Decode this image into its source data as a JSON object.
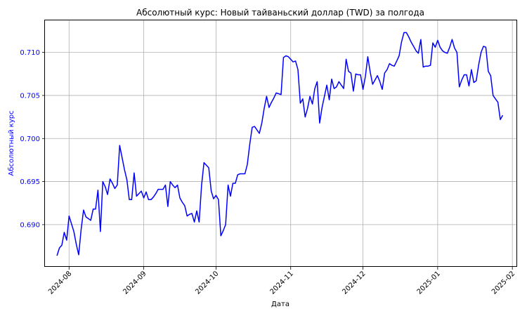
{
  "chart_data": {
    "type": "line",
    "title": "Абсолютный курс: Новый тайваньский доллар (TWD) за полгода",
    "xlabel": "Дата",
    "ylabel": "Абсолютный курс",
    "xlim": [
      "2024-07-22",
      "2025-02-03"
    ],
    "ylim": [
      0.6851,
      0.7138
    ],
    "grid": true,
    "line_color": "#0000ff",
    "ylabel_color": "#0000ff",
    "x_ticks": [
      "2024-08",
      "2024-09",
      "2024-10",
      "2024-11",
      "2024-12",
      "2025-01",
      "2025-02"
    ],
    "y_ticks": [
      "0.690",
      "0.695",
      "0.700",
      "0.705",
      "0.710"
    ],
    "series": [
      {
        "x": [
          "2024-07-27",
          "2024-07-28",
          "2024-07-29",
          "2024-07-30",
          "2024-07-31",
          "2024-08-01",
          "2024-08-02",
          "2024-08-03",
          "2024-08-04",
          "2024-08-05",
          "2024-08-06",
          "2024-08-07",
          "2024-08-08",
          "2024-08-09",
          "2024-08-10",
          "2024-08-11",
          "2024-08-12",
          "2024-08-13",
          "2024-08-14",
          "2024-08-15",
          "2024-08-16",
          "2024-08-17",
          "2024-08-18",
          "2024-08-19",
          "2024-08-20",
          "2024-08-21",
          "2024-08-22",
          "2024-08-23",
          "2024-08-24",
          "2024-08-25",
          "2024-08-26",
          "2024-08-27",
          "2024-08-28",
          "2024-08-29",
          "2024-08-30",
          "2024-08-31",
          "2024-09-01",
          "2024-09-02",
          "2024-09-03",
          "2024-09-04",
          "2024-09-05",
          "2024-09-06",
          "2024-09-07",
          "2024-09-08",
          "2024-09-09",
          "2024-09-10",
          "2024-09-11",
          "2024-09-12",
          "2024-09-13",
          "2024-09-14",
          "2024-09-15",
          "2024-09-16",
          "2024-09-17",
          "2024-09-18",
          "2024-09-19",
          "2024-09-20",
          "2024-09-21",
          "2024-09-22",
          "2024-09-23",
          "2024-09-24",
          "2024-09-25",
          "2024-09-26",
          "2024-09-27",
          "2024-09-28",
          "2024-09-29",
          "2024-09-30",
          "2024-10-01",
          "2024-10-02",
          "2024-10-03",
          "2024-10-04",
          "2024-10-05",
          "2024-10-06",
          "2024-10-07",
          "2024-10-08",
          "2024-10-09",
          "2024-10-10",
          "2024-10-11",
          "2024-10-12",
          "2024-10-13",
          "2024-10-14",
          "2024-10-15",
          "2024-10-16",
          "2024-10-17",
          "2024-10-18",
          "2024-10-19",
          "2024-10-20",
          "2024-10-21",
          "2024-10-22",
          "2024-10-23",
          "2024-10-24",
          "2024-10-25",
          "2024-10-26",
          "2024-10-27",
          "2024-10-28",
          "2024-10-29",
          "2024-10-30",
          "2024-10-31",
          "2024-11-01",
          "2024-11-02",
          "2024-11-03",
          "2024-11-04",
          "2024-11-05",
          "2024-11-06",
          "2024-11-07",
          "2024-11-08",
          "2024-11-09",
          "2024-11-10",
          "2024-11-11",
          "2024-11-12",
          "2024-11-13",
          "2024-11-14",
          "2024-11-15",
          "2024-11-16",
          "2024-11-17",
          "2024-11-18",
          "2024-11-19",
          "2024-11-20",
          "2024-11-21",
          "2024-11-22",
          "2024-11-23",
          "2024-11-24",
          "2024-11-25",
          "2024-11-26",
          "2024-11-27",
          "2024-11-28",
          "2024-11-29",
          "2024-11-30",
          "2024-12-01",
          "2024-12-02",
          "2024-12-03",
          "2024-12-04",
          "2024-12-05",
          "2024-12-06",
          "2024-12-07",
          "2024-12-08",
          "2024-12-09",
          "2024-12-10",
          "2024-12-11",
          "2024-12-12",
          "2024-12-13",
          "2024-12-14",
          "2024-12-15",
          "2024-12-16",
          "2024-12-17",
          "2024-12-18",
          "2024-12-19",
          "2024-12-20",
          "2024-12-21",
          "2024-12-22",
          "2024-12-23",
          "2024-12-24",
          "2024-12-25",
          "2024-12-26",
          "2024-12-27",
          "2024-12-28",
          "2024-12-29",
          "2024-12-30",
          "2024-12-31",
          "2025-01-01",
          "2025-01-02",
          "2025-01-03",
          "2025-01-04",
          "2025-01-05",
          "2025-01-06",
          "2025-01-07",
          "2025-01-08",
          "2025-01-09",
          "2025-01-10",
          "2025-01-11",
          "2025-01-12",
          "2025-01-13",
          "2025-01-14",
          "2025-01-15",
          "2025-01-16",
          "2025-01-17",
          "2025-01-18",
          "2025-01-19",
          "2025-01-20",
          "2025-01-21",
          "2025-01-22",
          "2025-01-23",
          "2025-01-24",
          "2025-01-25",
          "2025-01-26",
          "2025-01-27",
          "2025-01-28"
        ],
        "y": [
          0.6864,
          0.6873,
          0.6876,
          0.6891,
          0.6882,
          0.691,
          0.6901,
          0.6892,
          0.6877,
          0.6865,
          0.6894,
          0.6917,
          0.6909,
          0.6907,
          0.6905,
          0.6918,
          0.6918,
          0.694,
          0.6892,
          0.695,
          0.6944,
          0.6935,
          0.6953,
          0.6948,
          0.6942,
          0.6946,
          0.6992,
          0.6978,
          0.6964,
          0.6952,
          0.6929,
          0.6929,
          0.696,
          0.6933,
          0.6936,
          0.6939,
          0.6931,
          0.6938,
          0.6929,
          0.6929,
          0.6932,
          0.6936,
          0.6941,
          0.6941,
          0.6941,
          0.6946,
          0.6921,
          0.695,
          0.6946,
          0.6943,
          0.6946,
          0.6931,
          0.6926,
          0.6922,
          0.691,
          0.6912,
          0.6913,
          0.6903,
          0.6916,
          0.6903,
          0.6946,
          0.6972,
          0.6969,
          0.6966,
          0.6939,
          0.693,
          0.6934,
          0.6929,
          0.6887,
          0.6893,
          0.69,
          0.6946,
          0.6933,
          0.6948,
          0.6948,
          0.6958,
          0.6959,
          0.6959,
          0.6959,
          0.697,
          0.6993,
          0.7013,
          0.7014,
          0.701,
          0.7006,
          0.7018,
          0.7035,
          0.7049,
          0.7036,
          0.7042,
          0.7047,
          0.7053,
          0.7052,
          0.7051,
          0.7094,
          0.7096,
          0.7095,
          0.7092,
          0.7089,
          0.709,
          0.708,
          0.7041,
          0.7046,
          0.7025,
          0.7035,
          0.7049,
          0.704,
          0.7058,
          0.7066,
          0.7018,
          0.7036,
          0.7049,
          0.7062,
          0.7045,
          0.7069,
          0.7058,
          0.706,
          0.7066,
          0.7062,
          0.7058,
          0.7092,
          0.7078,
          0.7076,
          0.7055,
          0.7075,
          0.7074,
          0.7074,
          0.7057,
          0.7072,
          0.7095,
          0.7077,
          0.7063,
          0.7068,
          0.7073,
          0.7066,
          0.7057,
          0.7076,
          0.708,
          0.7087,
          0.7085,
          0.7084,
          0.709,
          0.7096,
          0.7112,
          0.7123,
          0.7123,
          0.7118,
          0.7112,
          0.7107,
          0.7102,
          0.7099,
          0.7115,
          0.7083,
          0.7084,
          0.7084,
          0.7085,
          0.7111,
          0.7106,
          0.7114,
          0.7106,
          0.7102,
          0.71,
          0.7099,
          0.7106,
          0.7115,
          0.7105,
          0.71,
          0.706,
          0.7068,
          0.7074,
          0.7074,
          0.7061,
          0.708,
          0.7065,
          0.7067,
          0.7085,
          0.71,
          0.7107,
          0.7106,
          0.7078,
          0.7073,
          0.705,
          0.7046,
          0.7042,
          0.7022,
          0.7027
        ]
      }
    ]
  }
}
